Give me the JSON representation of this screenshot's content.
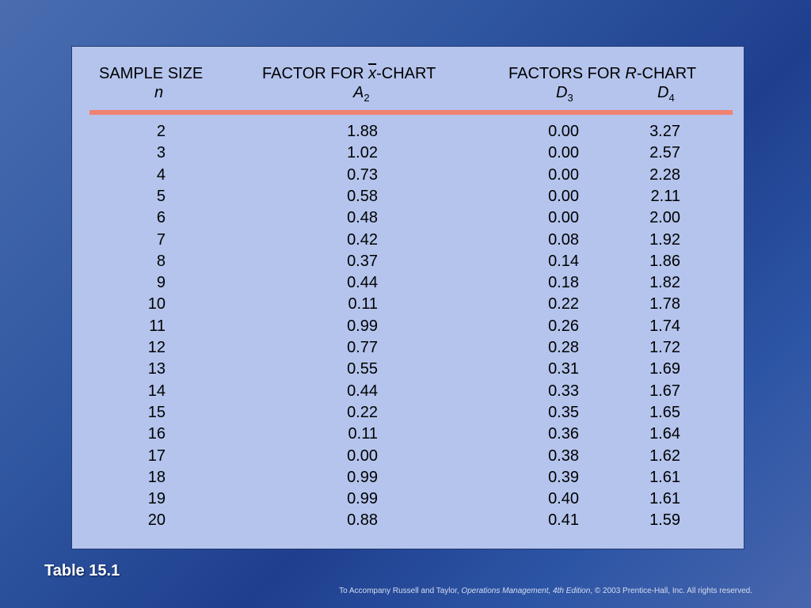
{
  "table": {
    "headers": {
      "sample_size": "SAMPLE SIZE",
      "n": "n",
      "xchart_prefix": "FACTOR FOR ",
      "xchart_symbol": "x",
      "xchart_suffix": "-CHART",
      "a2_letter": "A",
      "a2_sub": "2",
      "rchart_prefix": "FACTORS FOR ",
      "rchart_symbol": "R",
      "rchart_suffix": "-CHART",
      "d3_letter": "D",
      "d3_sub": "3",
      "d4_letter": "D",
      "d4_sub": "4"
    },
    "rows": [
      {
        "n": "2",
        "a2": "1.88",
        "d3": "0.00",
        "d4": "3.27"
      },
      {
        "n": "3",
        "a2": "1.02",
        "d3": "0.00",
        "d4": "2.57"
      },
      {
        "n": "4",
        "a2": "0.73",
        "d3": "0.00",
        "d4": "2.28"
      },
      {
        "n": "5",
        "a2": "0.58",
        "d3": "0.00",
        "d4": "2.11"
      },
      {
        "n": "6",
        "a2": "0.48",
        "d3": "0.00",
        "d4": "2.00"
      },
      {
        "n": "7",
        "a2": "0.42",
        "d3": "0.08",
        "d4": "1.92"
      },
      {
        "n": "8",
        "a2": "0.37",
        "d3": "0.14",
        "d4": "1.86"
      },
      {
        "n": "9",
        "a2": "0.44",
        "d3": "0.18",
        "d4": "1.82"
      },
      {
        "n": "10",
        "a2": "0.11",
        "d3": "0.22",
        "d4": "1.78"
      },
      {
        "n": "11",
        "a2": "0.99",
        "d3": "0.26",
        "d4": "1.74"
      },
      {
        "n": "12",
        "a2": "0.77",
        "d3": "0.28",
        "d4": "1.72"
      },
      {
        "n": "13",
        "a2": "0.55",
        "d3": "0.31",
        "d4": "1.69"
      },
      {
        "n": "14",
        "a2": "0.44",
        "d3": "0.33",
        "d4": "1.67"
      },
      {
        "n": "15",
        "a2": "0.22",
        "d3": "0.35",
        "d4": "1.65"
      },
      {
        "n": "16",
        "a2": "0.11",
        "d3": "0.36",
        "d4": "1.64"
      },
      {
        "n": "17",
        "a2": "0.00",
        "d3": "0.38",
        "d4": "1.62"
      },
      {
        "n": "18",
        "a2": "0.99",
        "d3": "0.39",
        "d4": "1.61"
      },
      {
        "n": "19",
        "a2": "0.99",
        "d3": "0.40",
        "d4": "1.61"
      },
      {
        "n": "20",
        "a2": "0.88",
        "d3": "0.41",
        "d4": "1.59"
      }
    ]
  },
  "caption": "Table 15.1",
  "footer": {
    "prefix": "To Accompany Russell and Taylor, ",
    "book": "Operations Management, 4th Edition",
    "suffix": ",  © 2003 Prentice-Hall, Inc. All rights reserved."
  },
  "colors": {
    "panel": "#b4c4ed",
    "rule": "#f08272",
    "background": "#2f56a0"
  }
}
